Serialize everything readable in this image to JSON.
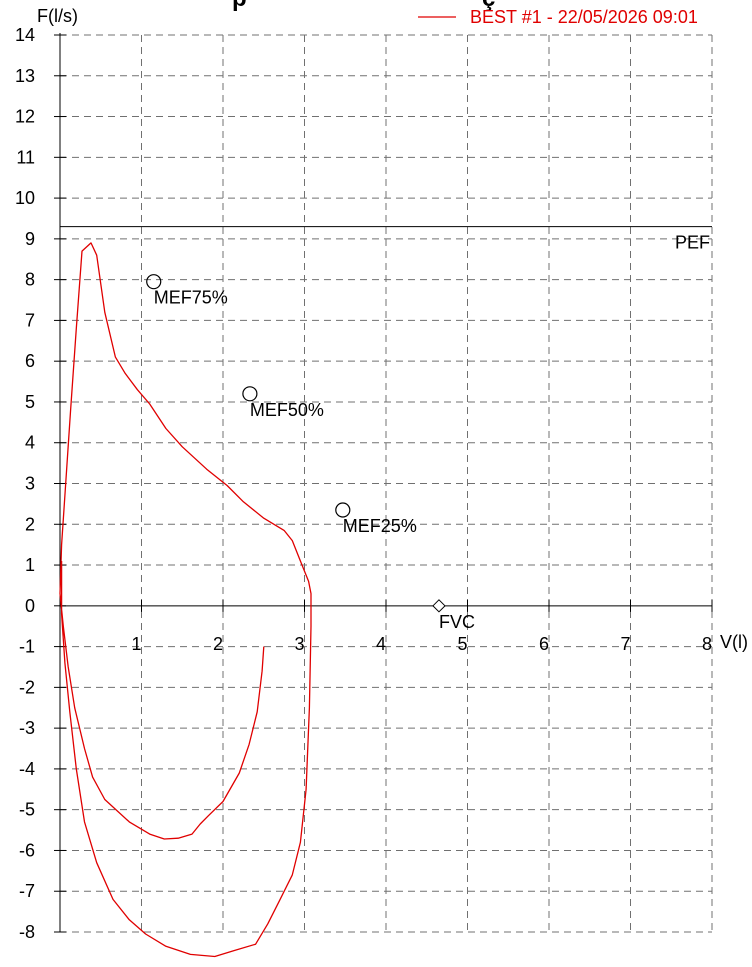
{
  "chart_data": {
    "type": "line",
    "title": "",
    "title_fragment": "p",
    "title_fragment2": "ç",
    "xlabel": "V(l)",
    "ylabel": "F(l/s)",
    "xlim": [
      0,
      8
    ],
    "ylim": [
      -8,
      14
    ],
    "grid": true,
    "legend_position": "top-right",
    "x_ticks": [
      "1",
      "2",
      "3",
      "4",
      "5",
      "6",
      "7",
      "8"
    ],
    "y_ticks": [
      "-8",
      "-7",
      "-6",
      "-5",
      "-4",
      "-3",
      "-2",
      "-1",
      "0",
      "1",
      "2",
      "3",
      "4",
      "5",
      "6",
      "7",
      "8",
      "9",
      "10",
      "11",
      "12",
      "13",
      "14"
    ],
    "series": [
      {
        "name": "BEST #1 - 22/05/2026  09:01",
        "color": "#e00000",
        "points": [
          [
            2.5,
            -1.0
          ],
          [
            2.48,
            -1.6
          ],
          [
            2.42,
            -2.6
          ],
          [
            2.32,
            -3.4
          ],
          [
            2.2,
            -4.1
          ],
          [
            2.0,
            -4.8
          ],
          [
            1.82,
            -5.15
          ],
          [
            1.72,
            -5.35
          ],
          [
            1.62,
            -5.6
          ],
          [
            1.45,
            -5.7
          ],
          [
            1.28,
            -5.72
          ],
          [
            1.1,
            -5.6
          ],
          [
            0.85,
            -5.3
          ],
          [
            0.55,
            -4.75
          ],
          [
            0.4,
            -4.2
          ],
          [
            0.3,
            -3.5
          ],
          [
            0.18,
            -2.5
          ],
          [
            0.1,
            -1.5
          ],
          [
            0.04,
            -0.5
          ],
          [
            0.0,
            0.3
          ],
          [
            0.02,
            1.5
          ],
          [
            0.07,
            3.0
          ],
          [
            0.13,
            4.8
          ],
          [
            0.2,
            6.8
          ],
          [
            0.27,
            8.7
          ],
          [
            0.38,
            8.9
          ],
          [
            0.45,
            8.6
          ],
          [
            0.55,
            7.2
          ],
          [
            0.68,
            6.1
          ],
          [
            0.8,
            5.7
          ],
          [
            0.95,
            5.3
          ],
          [
            1.1,
            4.95
          ],
          [
            1.3,
            4.35
          ],
          [
            1.5,
            3.9
          ],
          [
            1.8,
            3.35
          ],
          [
            2.05,
            2.95
          ],
          [
            2.25,
            2.55
          ],
          [
            2.5,
            2.15
          ],
          [
            2.75,
            1.85
          ],
          [
            2.85,
            1.6
          ],
          [
            2.95,
            1.1
          ],
          [
            3.05,
            0.6
          ],
          [
            3.08,
            0.3
          ],
          [
            3.08,
            -0.5
          ],
          [
            3.06,
            -2.5
          ],
          [
            3.02,
            -4.5
          ],
          [
            2.95,
            -5.8
          ],
          [
            2.85,
            -6.6
          ],
          [
            2.7,
            -7.2
          ],
          [
            2.55,
            -7.8
          ],
          [
            2.4,
            -8.3
          ],
          [
            2.15,
            -8.45
          ],
          [
            1.9,
            -8.6
          ],
          [
            1.6,
            -8.55
          ],
          [
            1.3,
            -8.35
          ],
          [
            1.05,
            -8.05
          ],
          [
            0.85,
            -7.7
          ],
          [
            0.65,
            -7.2
          ],
          [
            0.45,
            -6.3
          ],
          [
            0.3,
            -5.3
          ],
          [
            0.2,
            -4.0
          ],
          [
            0.12,
            -2.6
          ],
          [
            0.06,
            -1.4
          ],
          [
            0.02,
            -0.2
          ],
          [
            0.02,
            1.1
          ]
        ]
      }
    ],
    "reference_lines": [
      {
        "label": "PEF",
        "y": 9.3
      }
    ],
    "markers": [
      {
        "label": "MEF75%",
        "x": 1.15,
        "y": 7.95,
        "shape": "circle"
      },
      {
        "label": "MEF50%",
        "x": 2.33,
        "y": 5.2,
        "shape": "circle"
      },
      {
        "label": "MEF25%",
        "x": 3.47,
        "y": 2.35,
        "shape": "circle"
      },
      {
        "label": "FVC",
        "x": 4.65,
        "y": 0.0,
        "shape": "diamond"
      }
    ]
  }
}
